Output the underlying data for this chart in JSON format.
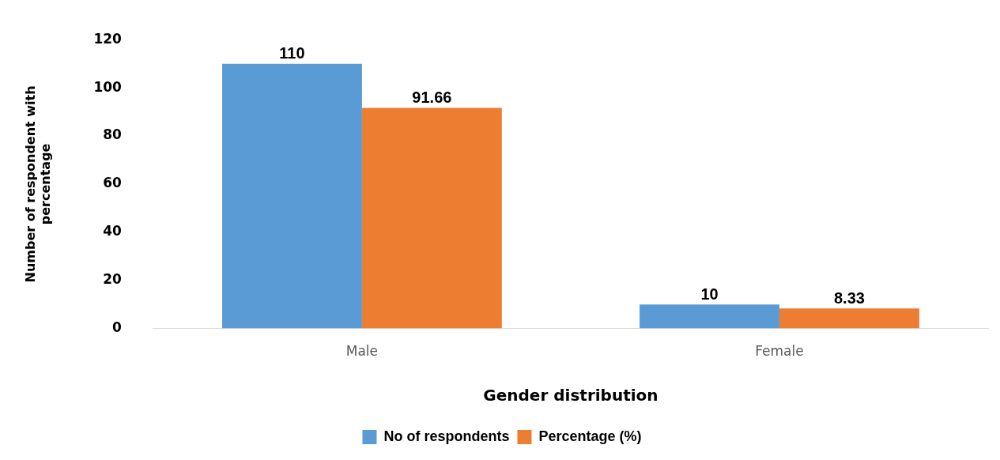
{
  "chart_data": {
    "type": "bar",
    "xlabel": "Gender distribution",
    "ylabel": "Number of respondent with percentage",
    "categories": [
      "Male",
      "Female"
    ],
    "series": [
      {
        "name": "No of respondents",
        "color": "#5b9bd5",
        "values": [
          110,
          10
        ]
      },
      {
        "name": "Percentage (%)",
        "color": "#ed7d31",
        "values": [
          91.66,
          8.33
        ]
      }
    ],
    "ylim": [
      0,
      120
    ],
    "yticks": [
      0,
      20,
      40,
      60,
      80,
      100,
      120
    ],
    "grid": false,
    "legend": "bottom",
    "data_labels": true
  }
}
